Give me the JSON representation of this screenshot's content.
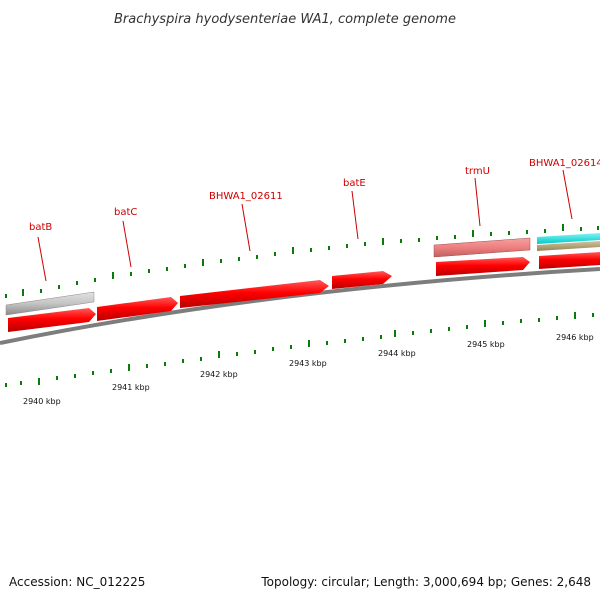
{
  "title": "Brachyspira hyodysenteriae WA1, complete genome",
  "footer": {
    "accession": "Accession: NC_012225",
    "summary": "Topology: circular; Length: 3,000,694 bp; Genes: 2,648"
  },
  "gene_labels": [
    "batB",
    "batC",
    "BHWA1_02611",
    "batE",
    "trmU",
    "BHWA1_02614"
  ],
  "scale_labels": [
    "2940 kbp",
    "2941 kbp",
    "2942 kbp",
    "2943 kbp",
    "2944 kbp",
    "2945 kbp",
    "2946 kbp"
  ],
  "colors": {
    "cds": "#ff0000",
    "trna": "#f08080",
    "gray_feature": "#c8c8c8",
    "cyan_feature": "#00e5e5",
    "olive_feature": "#b5a57a",
    "tick": "#006600",
    "backbone": "#808080"
  }
}
